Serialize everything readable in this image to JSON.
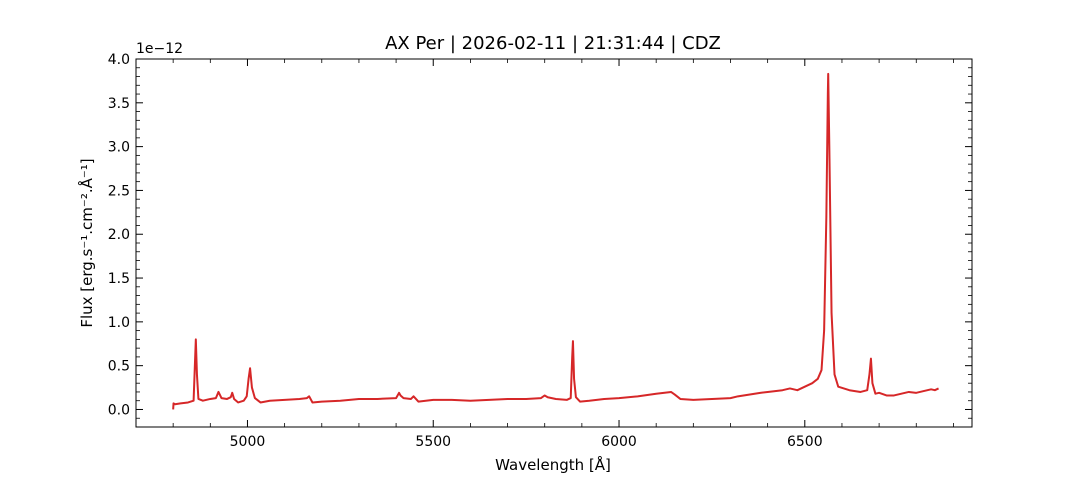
{
  "chart_data": {
    "type": "line",
    "title": "AX Per | 2026-02-11 | 21:31:44 | CDZ",
    "xlabel": "Wavelength [Å]",
    "ylabel": "Flux [erg.s⁻¹.cm⁻².Å⁻¹]",
    "y_offset_label": "1e−12",
    "xlim": [
      4700,
      6950
    ],
    "ylim": [
      -0.2,
      4.0
    ],
    "x_ticks": [
      5000,
      5500,
      6000,
      6500
    ],
    "x_tick_labels": [
      "5000",
      "5500",
      "6000",
      "6500"
    ],
    "y_ticks": [
      0.0,
      0.5,
      1.0,
      1.5,
      2.0,
      2.5,
      3.0,
      3.5,
      4.0
    ],
    "y_tick_labels": [
      "0.0",
      "0.5",
      "1.0",
      "1.5",
      "2.0",
      "2.5",
      "3.0",
      "3.5",
      "4.0"
    ],
    "grid": false,
    "line_color": "#d62728",
    "series": [
      {
        "x": [
          4800,
          4801,
          4805,
          4820,
          4840,
          4855,
          4858,
          4861,
          4864,
          4868,
          4880,
          4900,
          4915,
          4922,
          4930,
          4945,
          4955,
          4959,
          4964,
          4975,
          4990,
          4998,
          5003,
          5007,
          5012,
          5020,
          5035,
          5060,
          5100,
          5140,
          5160,
          5166,
          5175,
          5200,
          5250,
          5300,
          5350,
          5400,
          5408,
          5412,
          5420,
          5440,
          5447,
          5460,
          5500,
          5550,
          5600,
          5650,
          5700,
          5750,
          5790,
          5800,
          5808,
          5830,
          5860,
          5870,
          5874,
          5876,
          5879,
          5884,
          5895,
          5920,
          5960,
          6000,
          6050,
          6100,
          6140,
          6150,
          6165,
          6200,
          6250,
          6300,
          6320,
          6350,
          6380,
          6400,
          6420,
          6440,
          6460,
          6480,
          6500,
          6520,
          6535,
          6545,
          6552,
          6558,
          6562,
          6563,
          6566,
          6572,
          6580,
          6590,
          6620,
          6650,
          6668,
          6674,
          6678,
          6682,
          6690,
          6700,
          6720,
          6740,
          6760,
          6780,
          6800,
          6820,
          6840,
          6850,
          6860
        ],
        "y": [
          0.0,
          0.07,
          0.06,
          0.07,
          0.08,
          0.1,
          0.45,
          0.8,
          0.4,
          0.12,
          0.1,
          0.12,
          0.13,
          0.2,
          0.13,
          0.12,
          0.14,
          0.19,
          0.12,
          0.08,
          0.1,
          0.15,
          0.35,
          0.47,
          0.25,
          0.13,
          0.08,
          0.1,
          0.11,
          0.12,
          0.13,
          0.15,
          0.08,
          0.09,
          0.1,
          0.12,
          0.12,
          0.13,
          0.19,
          0.16,
          0.13,
          0.12,
          0.15,
          0.09,
          0.11,
          0.11,
          0.1,
          0.11,
          0.12,
          0.12,
          0.13,
          0.16,
          0.14,
          0.12,
          0.11,
          0.13,
          0.6,
          0.78,
          0.35,
          0.14,
          0.09,
          0.1,
          0.12,
          0.13,
          0.15,
          0.18,
          0.2,
          0.17,
          0.12,
          0.11,
          0.12,
          0.13,
          0.15,
          0.17,
          0.19,
          0.2,
          0.21,
          0.22,
          0.24,
          0.22,
          0.26,
          0.3,
          0.35,
          0.45,
          0.9,
          2.2,
          3.6,
          3.83,
          3.0,
          1.1,
          0.4,
          0.26,
          0.22,
          0.2,
          0.22,
          0.4,
          0.58,
          0.3,
          0.18,
          0.19,
          0.16,
          0.16,
          0.18,
          0.2,
          0.19,
          0.21,
          0.23,
          0.22,
          0.24
        ]
      }
    ]
  }
}
